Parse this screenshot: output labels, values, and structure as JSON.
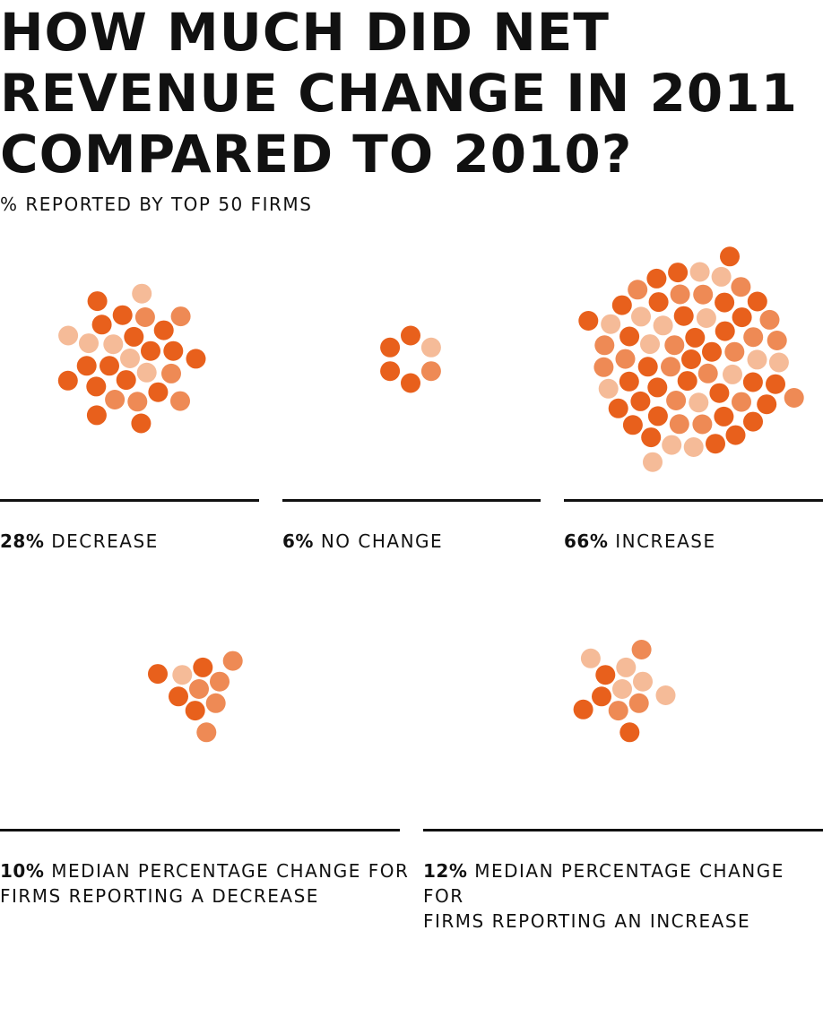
{
  "title": "HOW MUCH DID NET REVENUE CHANGE IN 2011 COMPARED TO 2010?",
  "subtitle": "% REPORTED BY TOP 50 FIRMS",
  "colors": {
    "dark": "#e8601c",
    "medium": "#ee8a55",
    "light": "#f5bb98",
    "text": "#111111"
  },
  "chart_data": [
    {
      "type": "pictogram",
      "title": "HOW MUCH DID NET REVENUE CHANGE IN 2011 COMPARED TO 2010?",
      "subtitle": "% REPORTED BY TOP 50 FIRMS",
      "categories": [
        "DECREASE",
        "NO CHANGE",
        "INCREASE"
      ],
      "values": [
        28,
        6,
        66
      ],
      "value_labels": [
        "28%",
        "6%",
        "66%"
      ],
      "unit": "%"
    },
    {
      "type": "pictogram",
      "categories": [
        "MEDIAN PERCENTAGE CHANGE FOR FIRMS REPORTING A DECREASE",
        "MEDIAN PERCENTAGE CHANGE FOR FIRMS REPORTING AN INCREASE"
      ],
      "values": [
        10,
        12
      ],
      "value_labels": [
        "10%",
        "12%"
      ],
      "unit": "%"
    }
  ],
  "labels": {
    "decrease_pct": "28%",
    "decrease_text": "DECREASE",
    "nochange_pct": "6%",
    "nochange_text": "NO CHANGE",
    "increase_pct": "66%",
    "increase_text": "INCREASE",
    "median_dec_pct": "10%",
    "median_dec_line1": "MEDIAN PERCENTAGE CHANGE FOR",
    "median_dec_line2": "FIRMS REPORTING A DECREASE",
    "median_inc_pct": "12%",
    "median_inc_line1": "MEDIAN PERCENTAGE CHANGE FOR",
    "median_inc_line2": "FIRMS REPORTING AN INCREASE"
  }
}
